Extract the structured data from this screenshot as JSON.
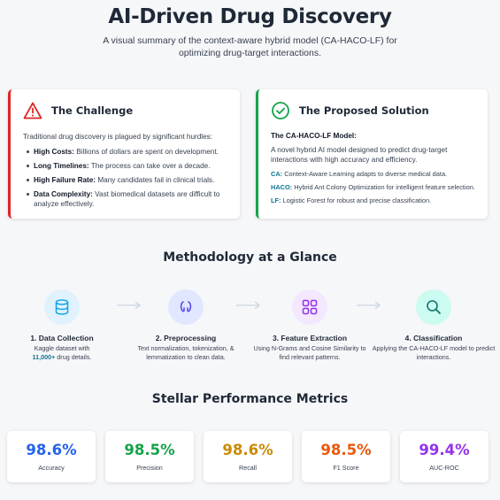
{
  "header": {
    "title": "AI-Driven Drug Discovery",
    "subtitle": "A visual summary of the context-aware hybrid model (CA-HACO-LF) for optimizing drug-target interactions."
  },
  "challenge": {
    "title": "The Challenge",
    "icon": "warning-triangle-icon",
    "accent": "#dc2626",
    "intro": "Traditional drug discovery is plagued by significant hurdles:",
    "items": [
      {
        "label": "High Costs:",
        "text": " Billions of dollars are spent on development."
      },
      {
        "label": "Long Timelines:",
        "text": " The process can take over a decade."
      },
      {
        "label": "High Failure Rate:",
        "text": " Many candidates fail in clinical trials."
      },
      {
        "label": "Data Complexity:",
        "text": " Vast biomedical datasets are difficult to analyze effectively."
      }
    ]
  },
  "solution": {
    "title": "The Proposed Solution",
    "icon": "check-circle-icon",
    "accent": "#16a34a",
    "model_title": "The CA-HACO-LF Model:",
    "intro": "A novel hybrid AI model designed to predict drug-target interactions with high accuracy and efficiency.",
    "components": [
      {
        "tag": "CA:",
        "text": " Context-Aware Learning adapts to diverse medical data."
      },
      {
        "tag": "HACO:",
        "text": " Hybrid Ant Colony Optimization for intelligent feature selection."
      },
      {
        "tag": "LF:",
        "text": " Logistic Forest for robust and precise classification."
      }
    ]
  },
  "methodology": {
    "title": "Methodology at a Glance",
    "steps": [
      {
        "title": "1. Data Collection",
        "desc_a": "Kaggle dataset with",
        "highlight": "11,000+",
        "desc_b": " drug details.",
        "icon": "database-icon",
        "color": "#0ea5e9",
        "bg": "#e0f2fe"
      },
      {
        "title": "2. Preprocessing",
        "desc": "Text normalization, tokenization, & lemmatization to clean data.",
        "icon": "scissors-icon",
        "color": "#4f46e5",
        "bg": "#e0e7ff"
      },
      {
        "title": "3. Feature Extraction",
        "desc": "Using N-Grams and Cosine Similarity to find relevant patterns.",
        "icon": "grid-icon",
        "color": "#9333ea",
        "bg": "#f3e8ff"
      },
      {
        "title": "4. Classification",
        "desc": "Applying the CA-HACO-LF model to predict interactions.",
        "icon": "search-icon",
        "color": "#0f766e",
        "bg": "#ccfbf1"
      }
    ]
  },
  "performance": {
    "title": "Stellar Performance Metrics",
    "metrics": [
      {
        "value": "98.6%",
        "label": "Accuracy",
        "color": "#2563eb"
      },
      {
        "value": "98.5%",
        "label": "Precision",
        "color": "#16a34a"
      },
      {
        "value": "98.6%",
        "label": "Recall",
        "color": "#ca8a04"
      },
      {
        "value": "98.5%",
        "label": "F1 Score",
        "color": "#ea580c"
      },
      {
        "value": "99.4%",
        "label": "AUC-ROC",
        "color": "#9333ea"
      }
    ]
  }
}
